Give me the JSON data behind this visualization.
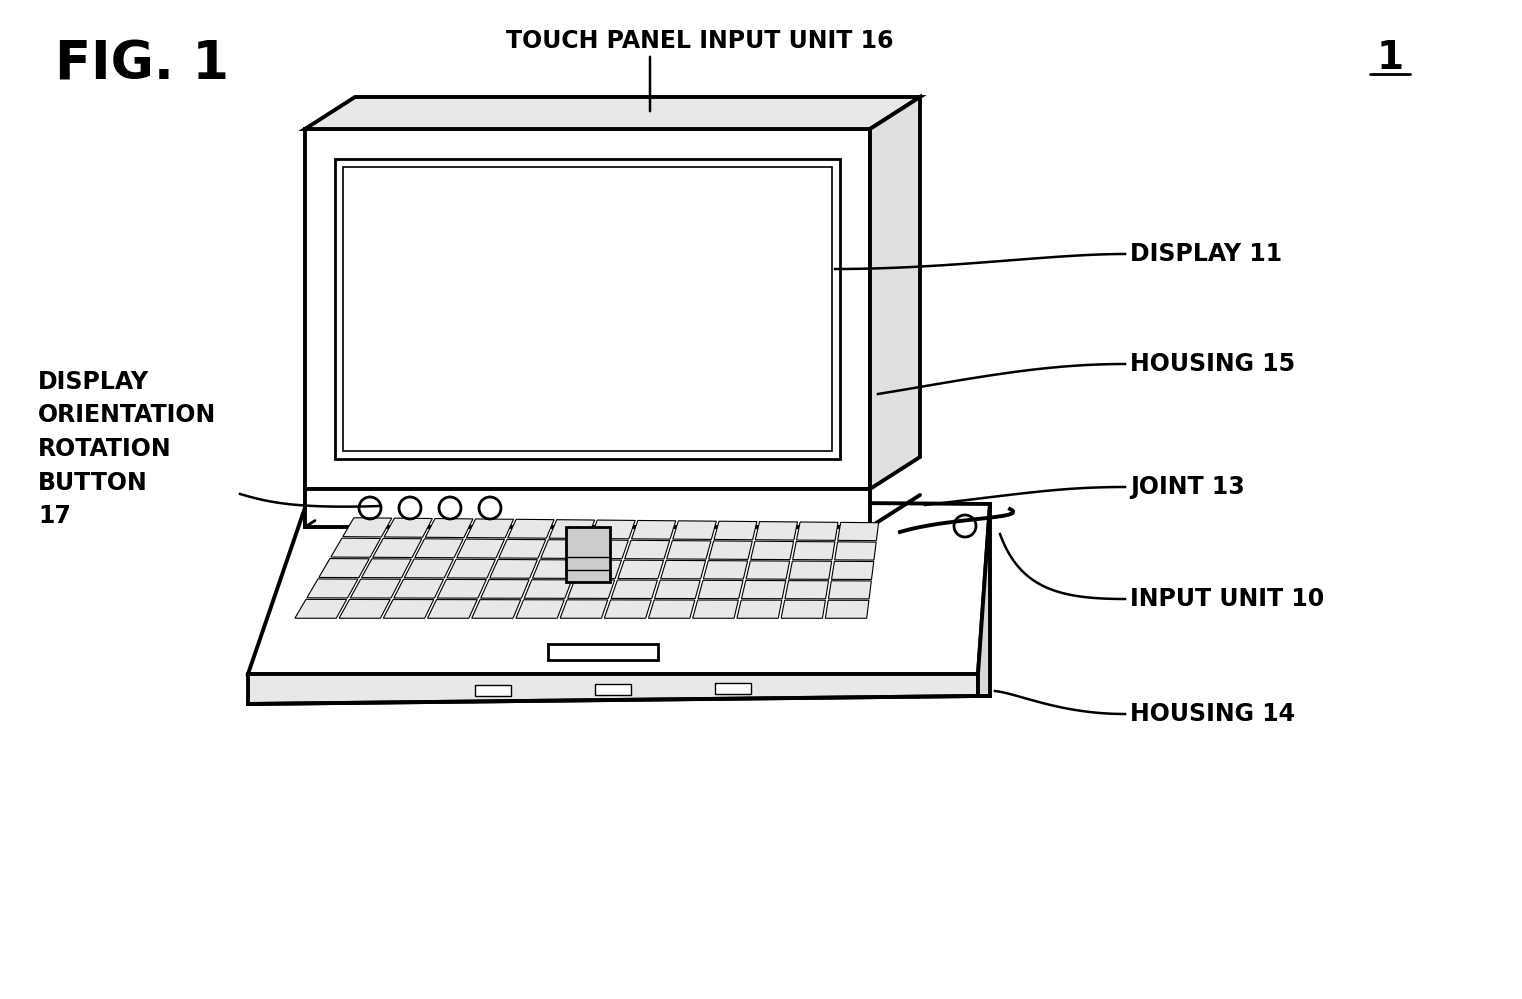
{
  "bg_color": "#ffffff",
  "line_color": "#000000",
  "labels": {
    "fig": "FIG. 1",
    "ref1": "1",
    "touch_panel": "TOUCH PANEL INPUT UNIT 16",
    "display": "DISPLAY 11",
    "housing15": "HOUSING 15",
    "joint": "JOINT 13",
    "input_unit": "INPUT UNIT 10",
    "housing14": "HOUSING 14",
    "display_orient": "DISPLAY\nORIENTATION\nROTATION\nBUTTON\n17"
  },
  "font_size_title": 38,
  "font_size_label": 17,
  "lw_thick": 2.8,
  "lw_medium": 2.0,
  "lw_thin": 1.2
}
